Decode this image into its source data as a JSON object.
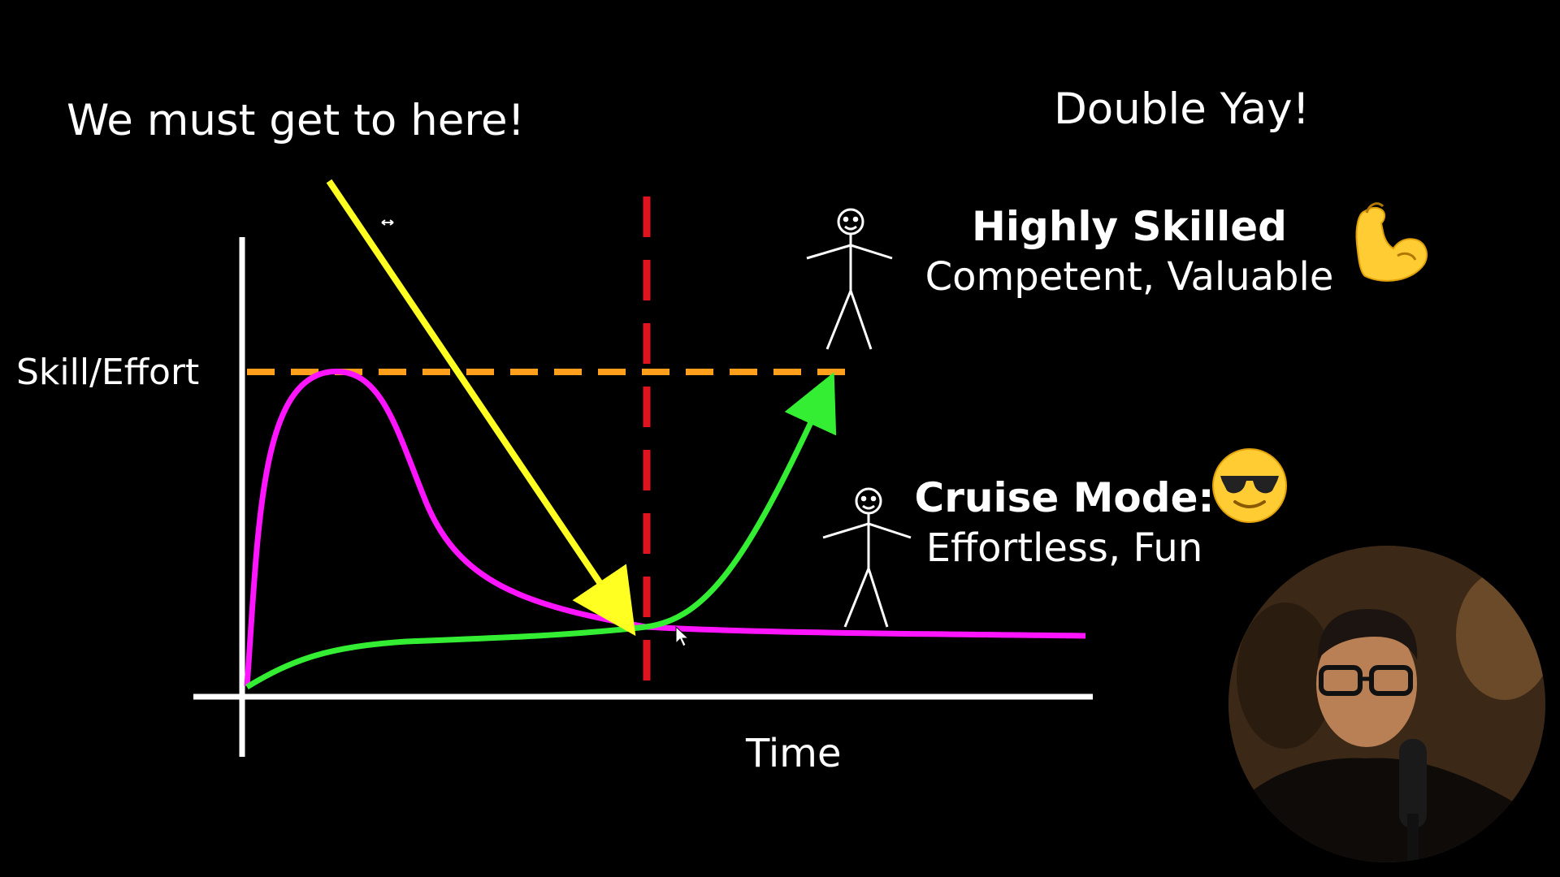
{
  "headline": "We must get to here!",
  "double_yay": "Double Yay!",
  "axes": {
    "y_label": "Skill/Effort",
    "x_label": "Time"
  },
  "highly_skilled": {
    "title": "Highly Skilled",
    "subtitle": "Competent, Valuable",
    "emoji": "flexed-biceps-icon"
  },
  "cruise_mode": {
    "title": "Cruise Mode:",
    "subtitle": "Effortless, Fun",
    "emoji": "smiling-face-with-sunglasses-icon"
  },
  "colors": {
    "background": "#000000",
    "axes": "#ffffff",
    "effort_curve": "#ff14ff",
    "skill_curve": "#33ee33",
    "threshold_line": "#ff9f1c",
    "divider_line": "#e0141e",
    "pointer_arrow": "#ffff22"
  },
  "webcam": {
    "description_icon": "presenter-webcam-icon"
  }
}
